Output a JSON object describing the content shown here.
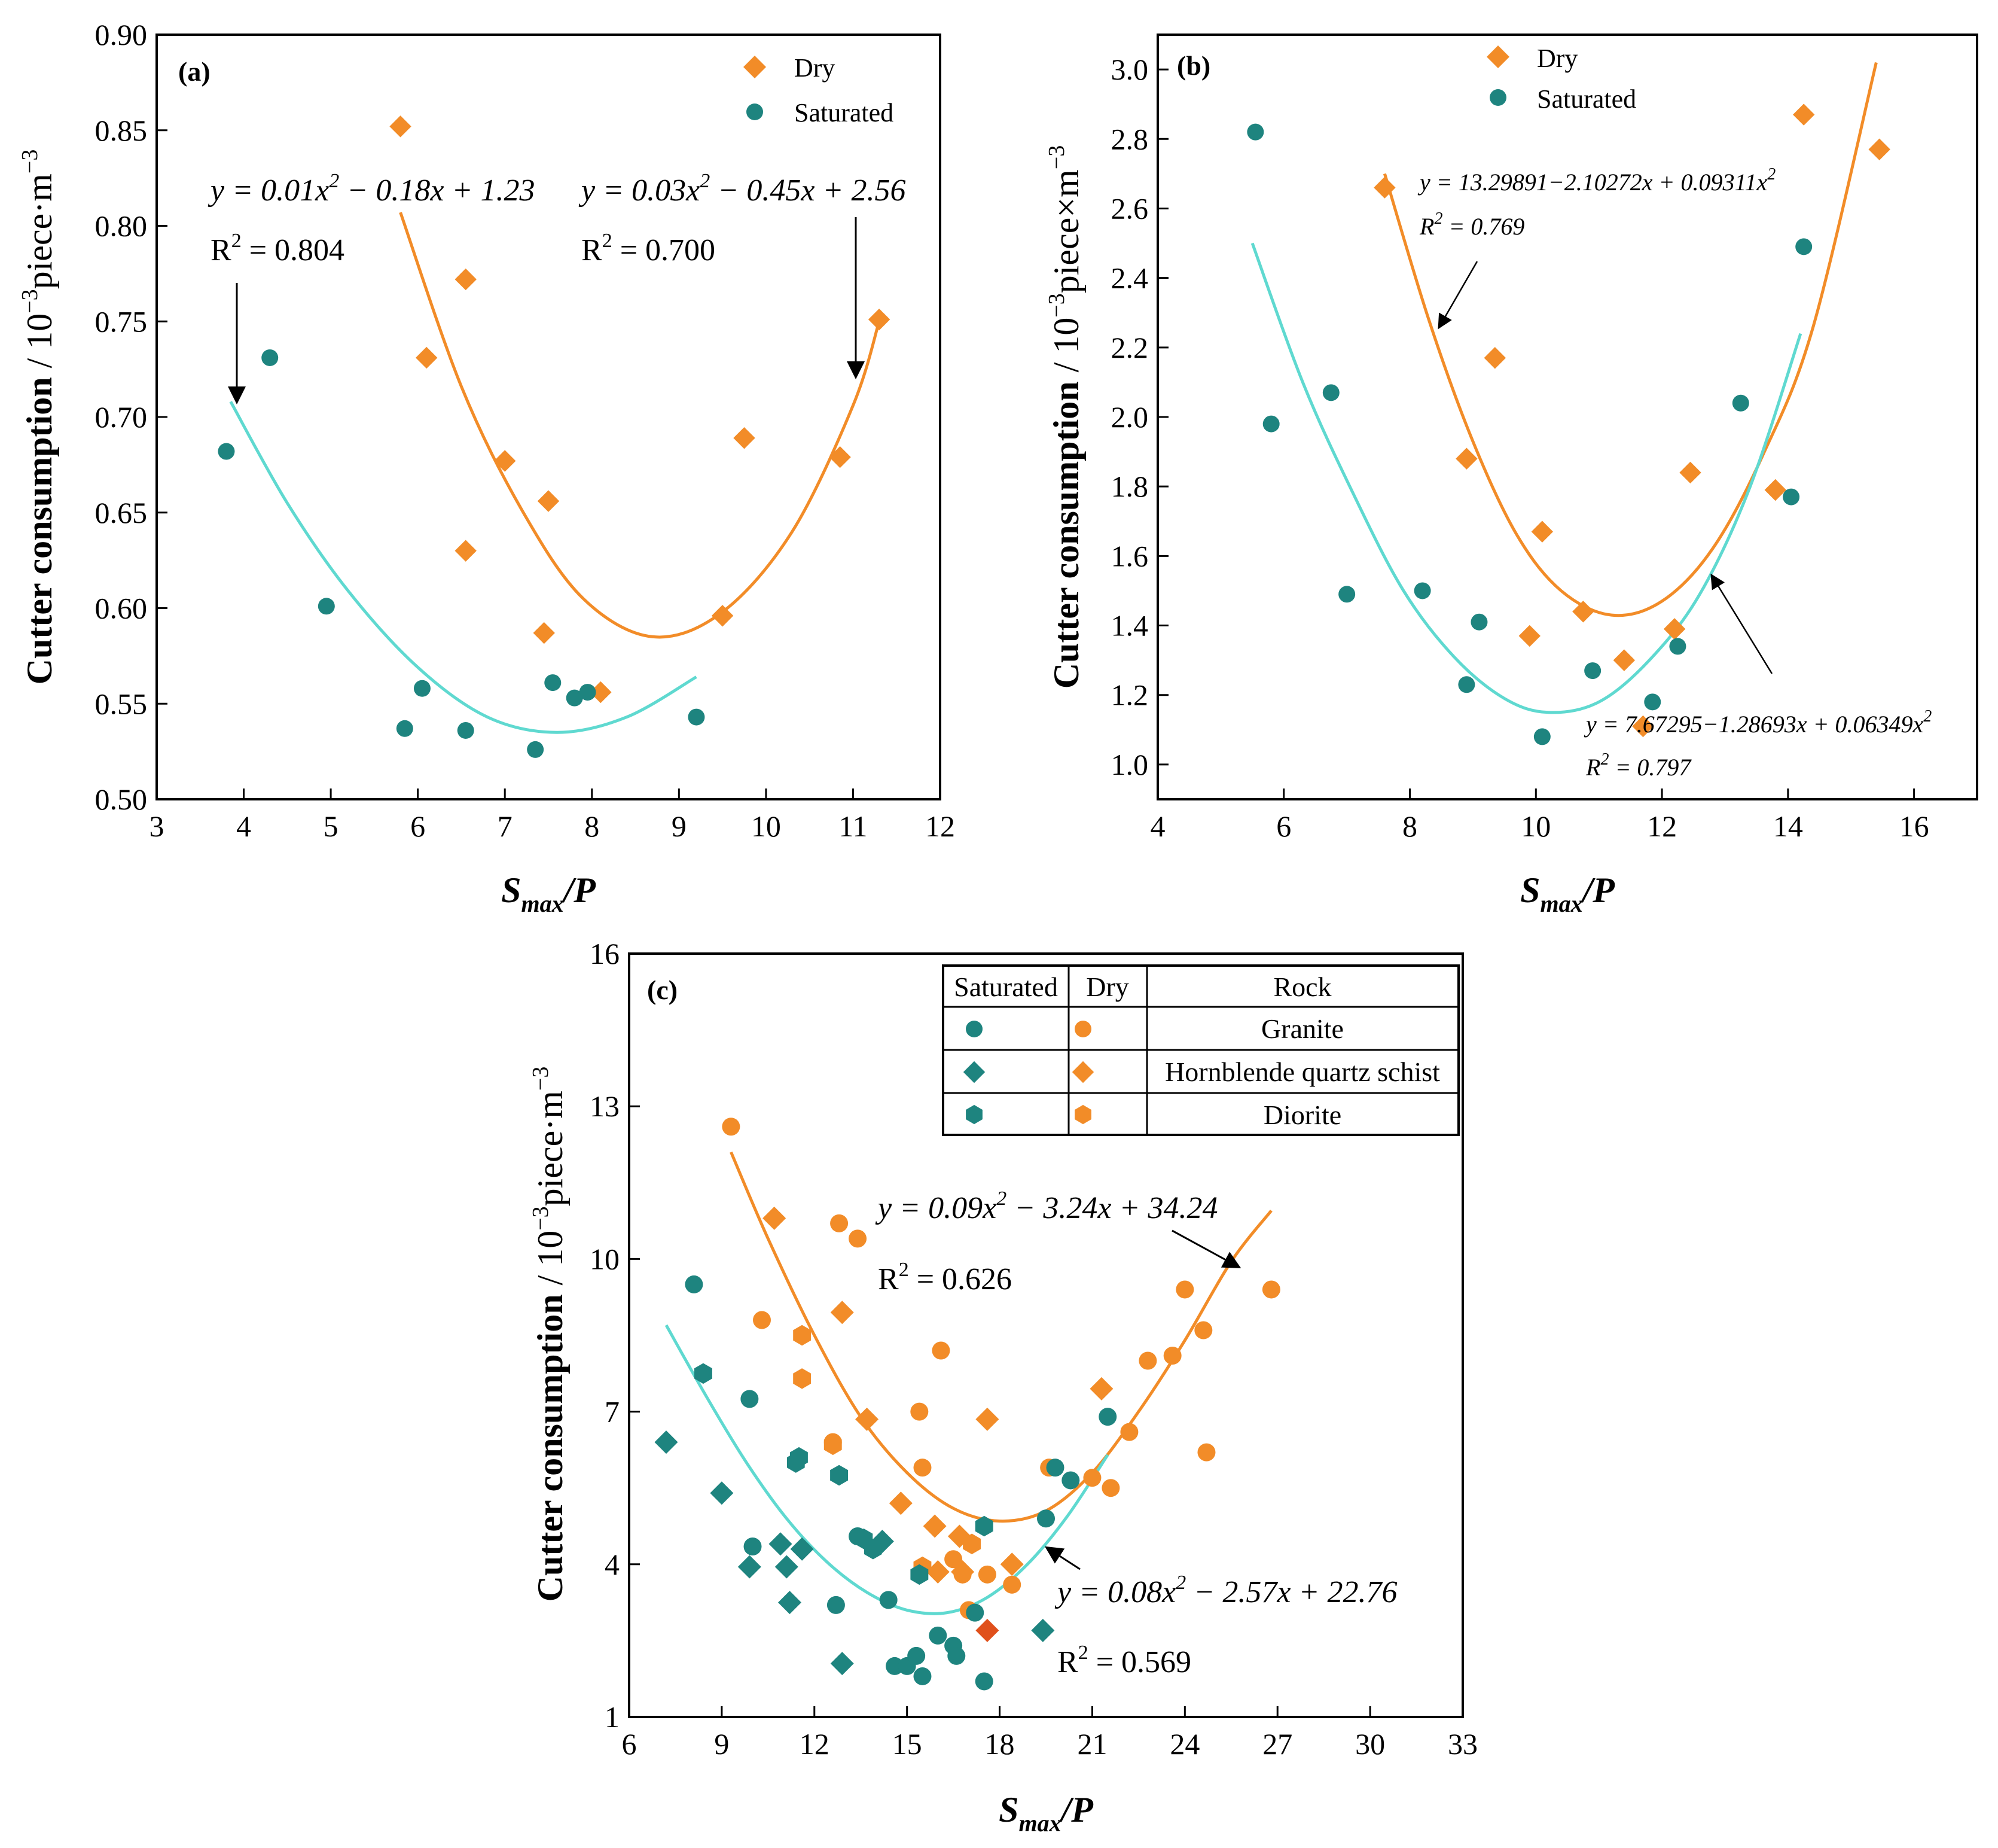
{
  "colors": {
    "dry": "#F28C28",
    "saturated": "#1E847F",
    "dry_fit": "#F28C28",
    "sat_fit": "#5FD9D0",
    "highlight": "#E0501B"
  },
  "chart_data": [
    {
      "id": "a",
      "type": "scatter",
      "panel_label": "(a)",
      "xlabel": "S_max/P",
      "ylabel": "Cutter consumption / 10^-3 piece·m^-3",
      "xlim": [
        3,
        12
      ],
      "ylim": [
        0.5,
        0.9
      ],
      "xticks": [
        3,
        4,
        5,
        6,
        7,
        8,
        9,
        10,
        11,
        12
      ],
      "yticks": [
        0.5,
        0.55,
        0.6,
        0.65,
        0.7,
        0.75,
        0.8,
        0.85,
        0.9
      ],
      "ytick_labels": [
        "0.50",
        "0.55",
        "0.60",
        "0.65",
        "0.70",
        "0.75",
        "0.80",
        "0.85",
        "0.90"
      ],
      "legend": [
        {
          "name": "Dry",
          "marker": "diamond"
        },
        {
          "name": "Saturated",
          "marker": "circle"
        }
      ],
      "series": [
        {
          "name": "Dry",
          "marker": "diamond",
          "x": [
            5.8,
            6.55,
            6.1,
            6.55,
            7.0,
            7.5,
            7.45,
            8.1,
            9.5,
            9.75,
            10.85,
            11.3
          ],
          "y": [
            0.852,
            0.772,
            0.731,
            0.63,
            0.677,
            0.656,
            0.587,
            0.556,
            0.596,
            0.689,
            0.679,
            0.751
          ]
        },
        {
          "name": "Saturated",
          "marker": "circle",
          "x": [
            3.8,
            4.3,
            4.95,
            5.85,
            6.05,
            6.55,
            7.35,
            7.55,
            7.8,
            7.95,
            9.2
          ],
          "y": [
            0.682,
            0.731,
            0.601,
            0.537,
            0.558,
            0.536,
            0.526,
            0.561,
            0.553,
            0.556,
            0.543
          ]
        }
      ],
      "fits": [
        {
          "name": "Dry fit",
          "x_range": [
            5.8,
            11.3
          ],
          "x": [
            5.8,
            6.5,
            7.2,
            7.9,
            8.7,
            9.5,
            10.3,
            11.0,
            11.3
          ],
          "y": [
            0.807,
            0.716,
            0.651,
            0.605,
            0.585,
            0.598,
            0.64,
            0.706,
            0.75
          ]
        },
        {
          "name": "Saturated fit",
          "x_range": [
            3.85,
            9.2
          ],
          "x": [
            3.85,
            4.5,
            5.2,
            6.0,
            6.8,
            7.6,
            8.4,
            9.2
          ],
          "y": [
            0.708,
            0.655,
            0.609,
            0.569,
            0.543,
            0.535,
            0.543,
            0.564
          ]
        }
      ],
      "annotations": [
        {
          "eq_left": "y = 0.01x",
          "eq_sup": "2",
          "eq_right": " − 0.18x + 1.23",
          "r2": "R",
          "r2_sup": "2",
          "r2_val": " = 0.804"
        },
        {
          "eq_left": "y = 0.03x",
          "eq_sup": "2",
          "eq_right": " − 0.45x + 2.56",
          "r2": "R",
          "r2_sup": "2",
          "r2_val": " = 0.700"
        }
      ]
    },
    {
      "id": "b",
      "type": "scatter",
      "panel_label": "(b)",
      "xlabel": "S_max/P",
      "ylabel": "Cutter consumption / 10^-3 piece×m^-3",
      "xlim": [
        4,
        17
      ],
      "ylim": [
        0.9,
        3.1
      ],
      "xticks": [
        4,
        6,
        8,
        10,
        12,
        14,
        16
      ],
      "yticks": [
        1.0,
        1.2,
        1.4,
        1.6,
        1.8,
        2.0,
        2.2,
        2.4,
        2.6,
        2.8,
        3.0
      ],
      "ytick_labels": [
        "1.0",
        "1.2",
        "1.4",
        "1.6",
        "1.8",
        "2.0",
        "2.2",
        "2.4",
        "2.6",
        "2.8",
        "3.0"
      ],
      "legend": [
        {
          "name": "Dry",
          "marker": "diamond"
        },
        {
          "name": "Saturated",
          "marker": "circle"
        }
      ],
      "series": [
        {
          "name": "Dry",
          "marker": "diamond",
          "x": [
            7.6,
            8.9,
            9.35,
            9.9,
            10.1,
            10.75,
            11.4,
            11.7,
            12.2,
            12.45,
            13.8,
            14.25,
            15.45
          ],
          "y": [
            2.66,
            1.88,
            2.17,
            1.37,
            1.67,
            1.44,
            1.3,
            1.11,
            1.39,
            1.84,
            1.79,
            2.87,
            2.77
          ]
        },
        {
          "name": "Saturated",
          "marker": "circle",
          "x": [
            5.55,
            5.8,
            6.75,
            7.0,
            8.2,
            8.9,
            9.1,
            10.1,
            10.9,
            11.85,
            12.25,
            13.25,
            14.05,
            14.25
          ],
          "y": [
            2.82,
            1.98,
            2.07,
            1.49,
            1.5,
            1.23,
            1.41,
            1.08,
            1.27,
            1.18,
            1.34,
            2.04,
            1.77,
            2.49
          ]
        }
      ],
      "fits": [
        {
          "name": "Dry fit",
          "x_range": [
            7.6,
            15.4
          ],
          "x": [
            7.6,
            8.3,
            9.0,
            9.7,
            10.4,
            11.2,
            12.0,
            12.8,
            13.6,
            14.4,
            15.4
          ],
          "y": [
            2.7,
            2.28,
            1.93,
            1.66,
            1.5,
            1.43,
            1.47,
            1.62,
            1.89,
            2.26,
            3.02
          ]
        },
        {
          "name": "Saturated fit",
          "x_range": [
            5.5,
            14.2
          ],
          "x": [
            5.5,
            6.3,
            7.1,
            7.9,
            8.7,
            9.5,
            10.2,
            11.0,
            11.8,
            12.6,
            13.4,
            14.2
          ],
          "y": [
            2.5,
            2.1,
            1.78,
            1.5,
            1.31,
            1.19,
            1.15,
            1.18,
            1.3,
            1.49,
            1.8,
            2.24
          ]
        }
      ],
      "annotations": [
        {
          "eq_left": "y = 13.29891−2.10272x + 0.09311x",
          "eq_sup": "2",
          "eq_right": "",
          "r2": "R",
          "r2_sup": "2",
          "r2_val": " = 0.769"
        },
        {
          "eq_left": "y = 7.67295−1.28693x + 0.06349x",
          "eq_sup": "2",
          "eq_right": "",
          "r2": "R",
          "r2_sup": "2",
          "r2_val": " = 0.797"
        }
      ]
    },
    {
      "id": "c",
      "type": "scatter",
      "panel_label": "(c)",
      "xlabel": "S_max/P",
      "ylabel": "Cutter consumption / 10^-3 piece·m^-3",
      "xlim": [
        6,
        33
      ],
      "ylim": [
        1,
        16
      ],
      "xticks": [
        6,
        9,
        12,
        15,
        18,
        21,
        24,
        27,
        30,
        33
      ],
      "yticks": [
        1,
        4,
        7,
        10,
        13,
        16
      ],
      "ytick_labels": [
        "1",
        "4",
        "7",
        "10",
        "13",
        "16"
      ],
      "legend_table": {
        "headers": [
          "Saturated",
          "Dry",
          "Rock"
        ],
        "rows": [
          {
            "rock": "Granite",
            "marker": "circle"
          },
          {
            "rock": "Hornblende quartz schist",
            "marker": "diamond"
          },
          {
            "rock": "Diorite",
            "marker": "hexagon"
          }
        ]
      },
      "series": [
        {
          "name": "Dry Granite",
          "marker": "circle",
          "x": [
            9.3,
            12.8,
            13.4,
            10.3,
            16.1,
            15.4,
            12.6,
            15.5,
            16.5,
            17.6,
            18.4,
            19.6,
            21.0,
            21.6,
            22.2,
            22.8,
            23.6,
            24.0,
            24.6,
            24.7,
            26.8,
            16.8,
            17.0
          ],
          "y": [
            12.6,
            10.7,
            10.4,
            8.8,
            8.2,
            7.0,
            6.4,
            5.9,
            4.1,
            3.8,
            3.6,
            5.9,
            5.7,
            5.5,
            6.6,
            8.0,
            8.1,
            9.4,
            8.6,
            6.2,
            9.4,
            3.8,
            3.1
          ]
        },
        {
          "name": "Dry Hornblende quartz schist",
          "marker": "diamond",
          "x": [
            10.7,
            12.9,
            13.7,
            14.8,
            15.9,
            16.7,
            17.6,
            21.3,
            16.8,
            16.0,
            18.4
          ],
          "y": [
            10.8,
            8.95,
            6.85,
            5.2,
            4.75,
            4.55,
            6.85,
            7.45,
            3.85,
            3.85,
            4.0
          ]
        },
        {
          "name": "Dry Diorite",
          "marker": "hexagon",
          "x": [
            11.6,
            11.6,
            12.6,
            17.1,
            15.5
          ],
          "y": [
            8.5,
            7.65,
            6.35,
            4.4,
            3.95
          ]
        },
        {
          "name": "Saturated Granite",
          "marker": "circle",
          "x": [
            8.1,
            9.9,
            10.0,
            12.7,
            13.4,
            14.4,
            14.6,
            15.0,
            15.3,
            15.5,
            16.0,
            16.5,
            17.5,
            19.5,
            19.8,
            20.3,
            21.5,
            17.2,
            16.6
          ],
          "y": [
            9.5,
            7.25,
            4.35,
            3.2,
            4.55,
            3.3,
            2.0,
            2.0,
            2.2,
            1.8,
            2.6,
            2.4,
            1.7,
            4.9,
            5.9,
            5.65,
            6.9,
            3.05,
            2.2
          ]
        },
        {
          "name": "Saturated Hornblende quartz schist",
          "marker": "diamond",
          "x": [
            7.2,
            9.0,
            9.9,
            10.9,
            11.1,
            11.2,
            11.6,
            12.9,
            14.2,
            19.4
          ],
          "y": [
            6.4,
            5.4,
            3.95,
            4.4,
            3.95,
            3.25,
            4.3,
            2.05,
            4.45,
            2.7
          ]
        },
        {
          "name": "Saturated Diorite",
          "marker": "hexagon",
          "x": [
            8.4,
            11.4,
            11.5,
            12.8,
            13.6,
            13.9,
            15.4,
            17.5
          ],
          "y": [
            7.75,
            6.0,
            6.1,
            5.75,
            4.5,
            4.3,
            3.8,
            4.75
          ]
        }
      ],
      "highlight_point": {
        "x": 17.6,
        "y": 2.7,
        "marker": "diamond"
      },
      "fits": [
        {
          "name": "Dry fit",
          "x_range": [
            9.3,
            26.8
          ],
          "x": [
            9.3,
            10.5,
            12.0,
            13.5,
            15.0,
            16.5,
            18.0,
            19.5,
            21.0,
            22.5,
            24.0,
            25.5,
            26.8
          ],
          "y": [
            12.1,
            10.4,
            8.5,
            6.9,
            5.8,
            5.1,
            4.85,
            5.05,
            5.8,
            7.0,
            8.4,
            9.95,
            10.95
          ]
        },
        {
          "name": "Saturated fit",
          "x_range": [
            7.2,
            21.5
          ],
          "x": [
            7.2,
            8.5,
            9.8,
            11.1,
            12.4,
            13.7,
            15.0,
            16.3,
            17.6,
            18.9,
            20.2,
            21.5
          ],
          "y": [
            8.7,
            7.3,
            6.0,
            4.9,
            4.05,
            3.45,
            3.1,
            3.05,
            3.35,
            4.0,
            4.95,
            6.15
          ]
        }
      ],
      "annotations": [
        {
          "eq_left": "y = 0.09x",
          "eq_sup": "2",
          "eq_right": " − 3.24x + 34.24",
          "r2": "R",
          "r2_sup": "2",
          "r2_val": " = 0.626"
        },
        {
          "eq_left": "y = 0.08x",
          "eq_sup": "2",
          "eq_right": " − 2.57x + 22.76",
          "r2": "R",
          "r2_sup": "2",
          "r2_val": " = 0.569"
        }
      ]
    }
  ],
  "axis_labels": {
    "ylabel_prefix": "Cutter consumption",
    "ylabel_unit_a": " / 10",
    "ylabel_exp": "−3",
    "ylabel_unit_a_tail": "piece·m",
    "ylabel_unit_b_tail": "piece×m",
    "ylabel_tail_exp": "−3",
    "xlabel_main": "S",
    "xlabel_sub": "max",
    "xlabel_tail": "/P"
  }
}
